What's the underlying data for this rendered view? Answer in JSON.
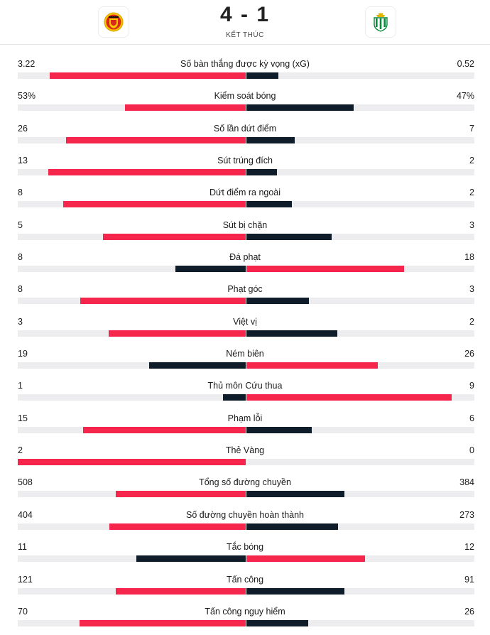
{
  "match": {
    "score": "4 - 1",
    "status": "KẾT THÚC",
    "home_team_icon": "manchester-united-crest",
    "away_team_icon": "real-betis-crest"
  },
  "colors": {
    "leader": "#f5254b",
    "trailer": "#0f1d2a",
    "track": "#ededf0"
  },
  "stats": [
    {
      "label": "Số bàn thắng được kỳ vọng (xG)",
      "home": "3.22",
      "away": "0.52",
      "home_value": 3.22,
      "away_value": 0.52
    },
    {
      "label": "Kiểm soát bóng",
      "home": "53%",
      "away": "47%",
      "home_value": 53,
      "away_value": 47
    },
    {
      "label": "Số lần dứt điểm",
      "home": "26",
      "away": "7",
      "home_value": 26,
      "away_value": 7
    },
    {
      "label": "Sút trúng đích",
      "home": "13",
      "away": "2",
      "home_value": 13,
      "away_value": 2
    },
    {
      "label": "Dứt điểm ra ngoài",
      "home": "8",
      "away": "2",
      "home_value": 8,
      "away_value": 2
    },
    {
      "label": "Sút bị chặn",
      "home": "5",
      "away": "3",
      "home_value": 5,
      "away_value": 3
    },
    {
      "label": "Đá phạt",
      "home": "8",
      "away": "18",
      "home_value": 8,
      "away_value": 18
    },
    {
      "label": "Phạt góc",
      "home": "8",
      "away": "3",
      "home_value": 8,
      "away_value": 3
    },
    {
      "label": "Việt vị",
      "home": "3",
      "away": "2",
      "home_value": 3,
      "away_value": 2
    },
    {
      "label": "Ném biên",
      "home": "19",
      "away": "26",
      "home_value": 19,
      "away_value": 26
    },
    {
      "label": "Thủ môn Cứu thua",
      "home": "1",
      "away": "9",
      "home_value": 1,
      "away_value": 9
    },
    {
      "label": "Phạm lỗi",
      "home": "15",
      "away": "6",
      "home_value": 15,
      "away_value": 6
    },
    {
      "label": "Thẻ Vàng",
      "home": "2",
      "away": "0",
      "home_value": 2,
      "away_value": 0
    },
    {
      "label": "Tổng số đường chuyền",
      "home": "508",
      "away": "384",
      "home_value": 508,
      "away_value": 384
    },
    {
      "label": "Số đường chuyền hoàn thành",
      "home": "404",
      "away": "273",
      "home_value": 404,
      "away_value": 273
    },
    {
      "label": "Tắc bóng",
      "home": "11",
      "away": "12",
      "home_value": 11,
      "away_value": 12
    },
    {
      "label": "Tấn công",
      "home": "121",
      "away": "91",
      "home_value": 121,
      "away_value": 91
    },
    {
      "label": "Tấn công nguy hiểm",
      "home": "70",
      "away": "26",
      "home_value": 70,
      "away_value": 26
    }
  ]
}
